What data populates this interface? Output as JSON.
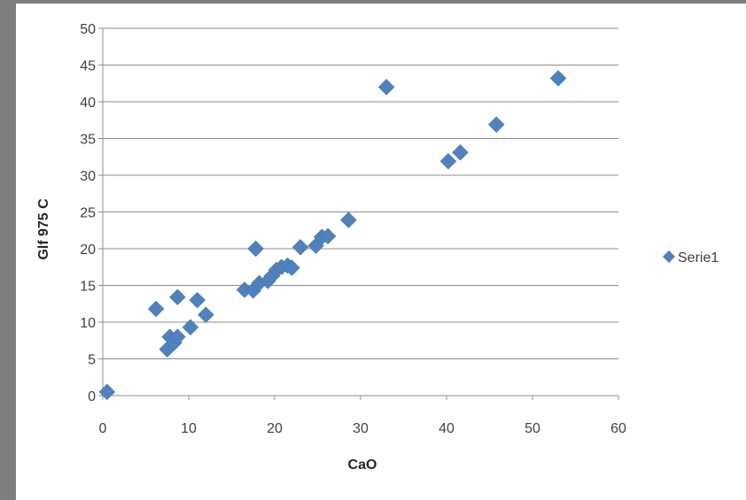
{
  "chart_data": {
    "type": "scatter",
    "title": "",
    "xlabel": "CaO",
    "ylabel": "Glf 975 C",
    "xlim": [
      0,
      60
    ],
    "ylim": [
      0,
      50
    ],
    "xticks": [
      0,
      10,
      20,
      30,
      40,
      50,
      60
    ],
    "yticks": [
      0,
      5,
      10,
      15,
      20,
      25,
      30,
      35,
      40,
      45,
      50
    ],
    "grid": "horizontal",
    "legend": "right",
    "series": [
      {
        "name": "Serie1",
        "color": "#4f81bd",
        "marker": "diamond",
        "points": [
          [
            0.5,
            0.5
          ],
          [
            6.2,
            11.8
          ],
          [
            7.5,
            6.3
          ],
          [
            7.8,
            8.0
          ],
          [
            8.3,
            7.2
          ],
          [
            8.7,
            8.0
          ],
          [
            8.7,
            13.4
          ],
          [
            10.2,
            9.3
          ],
          [
            11.0,
            13.0
          ],
          [
            12.0,
            11.0
          ],
          [
            16.5,
            14.4
          ],
          [
            17.5,
            14.3
          ],
          [
            17.8,
            20.0
          ],
          [
            18.2,
            15.3
          ],
          [
            19.2,
            15.6
          ],
          [
            19.7,
            16.3
          ],
          [
            20.2,
            17.1
          ],
          [
            20.8,
            17.5
          ],
          [
            21.5,
            17.7
          ],
          [
            22.0,
            17.4
          ],
          [
            23.0,
            20.2
          ],
          [
            24.8,
            20.4
          ],
          [
            25.5,
            21.6
          ],
          [
            26.2,
            21.7
          ],
          [
            28.6,
            23.9
          ],
          [
            33.0,
            42.0
          ],
          [
            40.2,
            31.9
          ],
          [
            41.6,
            33.1
          ],
          [
            45.8,
            36.9
          ],
          [
            53.0,
            43.2
          ]
        ]
      }
    ]
  }
}
